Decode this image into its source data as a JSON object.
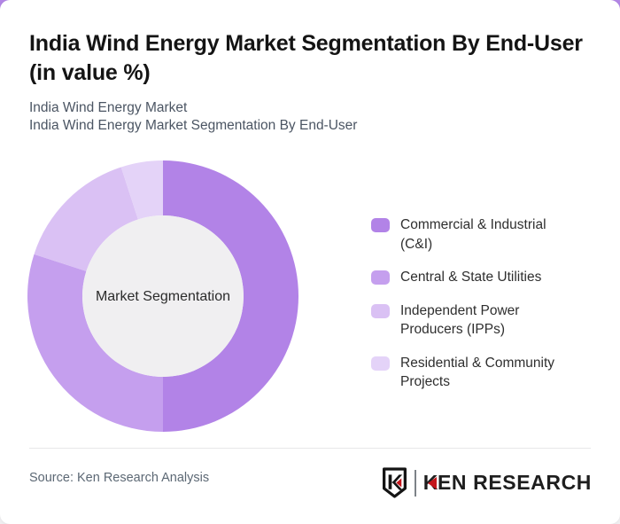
{
  "page": {
    "outside_top_color": "#b588e8",
    "card_color": "#ffffff"
  },
  "header": {
    "title_lines": [
      "India Wind Energy Market Segmentation By End-User",
      "(in value %)"
    ],
    "subtitle_lines": [
      "India Wind Energy Market",
      "India Wind Energy Market Segmentation By End-User"
    ]
  },
  "chart_data": {
    "type": "pie",
    "subtype": "donut",
    "title": "India Wind Energy Market Segmentation By End-User (in value %)",
    "center_label": "Market Segmentation",
    "categories": [
      "Commercial & Industrial (C&I)",
      "Central & State Utilities",
      "Independent Power Producers (IPPs)",
      "Residential & Community Projects"
    ],
    "values": [
      50,
      30,
      15,
      5
    ],
    "unit": "value %",
    "colors": [
      "#b283e7",
      "#c59fee",
      "#dac1f4",
      "#e4d3f8"
    ],
    "hole_color": "#f0eff1",
    "start_angle_deg": 0,
    "direction": "clockwise",
    "legend_position": "right",
    "data_labels": false
  },
  "footer": {
    "source_text": "Source: Ken Research Analysis",
    "brand_name": "KEN RESEARCH",
    "brand_k": "K",
    "brand_rest": "EN RESEARCH",
    "accent_red": "#c4161c"
  }
}
